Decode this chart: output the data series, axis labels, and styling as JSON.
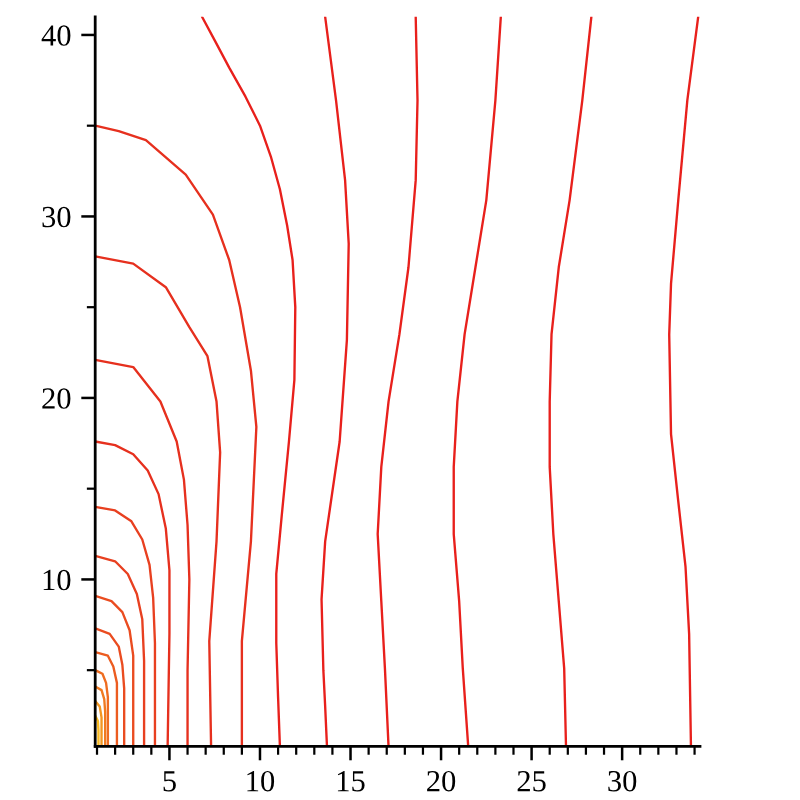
{
  "chart_data": {
    "type": "line",
    "xlim": [
      0.9,
      34.3
    ],
    "ylim": [
      0.8,
      41
    ],
    "xticks": [
      {
        "value": 1,
        "label": null
      },
      {
        "value": 2,
        "label": null
      },
      {
        "value": 3,
        "label": null
      },
      {
        "value": 4,
        "label": null
      },
      5,
      {
        "value": 6,
        "label": null
      },
      {
        "value": 7,
        "label": null
      },
      {
        "value": 8,
        "label": null
      },
      {
        "value": 9,
        "label": null
      },
      10,
      {
        "value": 11,
        "label": null
      },
      {
        "value": 12,
        "label": null
      },
      {
        "value": 13,
        "label": null
      },
      {
        "value": 14,
        "label": null
      },
      15,
      {
        "value": 16,
        "label": null
      },
      {
        "value": 17,
        "label": null
      },
      {
        "value": 18,
        "label": null
      },
      {
        "value": 19,
        "label": null
      },
      20,
      {
        "value": 21,
        "label": null
      },
      {
        "value": 22,
        "label": null
      },
      {
        "value": 23,
        "label": null
      },
      {
        "value": 24,
        "label": null
      },
      25,
      {
        "value": 26,
        "label": null
      },
      {
        "value": 27,
        "label": null
      },
      {
        "value": 28,
        "label": null
      },
      {
        "value": 29,
        "label": null
      },
      30,
      {
        "value": 31,
        "label": null
      },
      {
        "value": 32,
        "label": null
      },
      {
        "value": 33,
        "label": null
      },
      {
        "value": 34,
        "label": null
      }
    ],
    "yticks": [
      {
        "value": 5,
        "label": null
      },
      10,
      {
        "value": 15,
        "label": null
      },
      20,
      {
        "value": 25,
        "label": null
      },
      30,
      {
        "value": 35,
        "label": null
      },
      40
    ],
    "series": [
      {
        "color": "#e8201c",
        "x": [
          6.8,
          7.5,
          8.3,
          9.2,
          10.0,
          10.6,
          11.1,
          11.5,
          11.8,
          11.95,
          11.9,
          11.6,
          11.2,
          10.9,
          10.9,
          11.0,
          11.1
        ],
        "values": [
          41,
          39.7,
          38.2,
          36.6,
          35.0,
          33.3,
          31.5,
          29.5,
          27.6,
          25,
          21,
          17.6,
          13.5,
          10.3,
          6.5,
          3.5,
          0.8
        ]
      },
      {
        "color": "#e8201c",
        "x": [
          13.6,
          14.2,
          14.7,
          14.9,
          14.8,
          14.4,
          13.6,
          13.4,
          13.5,
          13.6,
          13.7
        ],
        "values": [
          41,
          36.4,
          32,
          28.5,
          23.2,
          17.6,
          12.1,
          8.9,
          5,
          3.0,
          0.8
        ]
      },
      {
        "color": "#e8201c",
        "x": [
          18.6,
          18.7,
          18.6,
          18.2,
          17.7,
          17.1,
          16.7,
          16.5,
          16.7,
          16.9,
          17.1
        ],
        "values": [
          41,
          36.4,
          32.0,
          27.2,
          23.5,
          19.8,
          16.2,
          12.5,
          8.8,
          5.1,
          0.8
        ]
      },
      {
        "color": "#e8201c",
        "x": [
          23.3,
          23.0,
          22.5,
          21.9,
          21.3,
          20.9,
          20.7,
          20.7,
          21.0,
          21.2,
          21.5
        ],
        "values": [
          41,
          36.4,
          30.9,
          27.2,
          23.5,
          19.8,
          16.2,
          12.5,
          8.8,
          5.1,
          0.8
        ]
      },
      {
        "color": "#e8201c",
        "x": [
          28.3,
          27.8,
          27.1,
          26.5,
          26.1,
          26.0,
          26.0,
          26.2,
          26.5,
          26.8,
          26.9
        ],
        "values": [
          41,
          36.4,
          30.9,
          27.2,
          23.5,
          19.8,
          16.2,
          12.5,
          8.8,
          5.1,
          0.8
        ]
      },
      {
        "color": "#e8201c",
        "x": [
          34.2,
          33.6,
          33.1,
          32.7,
          32.6,
          32.7,
          33.1,
          33.5,
          33.7,
          33.8
        ],
        "values": [
          41,
          36.4,
          30.9,
          26.3,
          23.5,
          18.0,
          14.3,
          10.7,
          7.0,
          0.8
        ]
      },
      {
        "color": "#e6301e",
        "x": [
          0.9,
          2.2,
          3.7,
          5.9,
          7.4,
          8.3,
          8.9,
          9.5,
          9.8,
          9.5,
          9.0,
          9.0
        ],
        "values": [
          35.0,
          34.7,
          34.2,
          32.3,
          30.1,
          27.6,
          25.0,
          21.5,
          18.4,
          12.1,
          6.6,
          0.8
        ]
      },
      {
        "color": "#e6301e",
        "x": [
          0.9,
          3.0,
          4.8,
          6.1,
          7.1,
          7.6,
          7.8,
          7.6,
          7.2,
          7.3
        ],
        "values": [
          27.8,
          27.4,
          26.1,
          23.9,
          22.3,
          19.8,
          17,
          12.1,
          6.6,
          0.8
        ]
      },
      {
        "color": "#e6301e",
        "x": [
          0.9,
          3.0,
          4.5,
          5.4,
          5.8,
          6.0,
          6.1,
          6.0,
          6.0
        ],
        "values": [
          22.1,
          21.7,
          19.8,
          17.6,
          15.5,
          13,
          10,
          5,
          0.8
        ]
      },
      {
        "color": "#e6301e",
        "x": [
          0.9,
          2.0,
          3.0,
          3.8,
          4.4,
          4.8,
          5.0,
          5.0,
          4.9
        ],
        "values": [
          17.6,
          17.4,
          16.9,
          16,
          14.7,
          12.8,
          10.5,
          7,
          0.8
        ]
      },
      {
        "color": "#e84020",
        "x": [
          0.9,
          2.0,
          2.9,
          3.5,
          3.9,
          4.1,
          4.2,
          4.2
        ],
        "values": [
          14.0,
          13.8,
          13.2,
          12.2,
          10.8,
          9,
          6.5,
          0.8
        ]
      },
      {
        "color": "#e84020",
        "x": [
          0.9,
          2.0,
          2.7,
          3.2,
          3.5,
          3.6,
          3.6
        ],
        "values": [
          11.3,
          11.0,
          10.3,
          9.2,
          7.8,
          5.5,
          0.8
        ]
      },
      {
        "color": "#ea4c20",
        "x": [
          0.9,
          1.8,
          2.4,
          2.8,
          3.0,
          3.0
        ],
        "values": [
          9.1,
          8.8,
          8.2,
          7.2,
          5.8,
          0.8
        ]
      },
      {
        "color": "#ea4c20",
        "x": [
          0.9,
          1.7,
          2.2,
          2.4,
          2.5,
          2.5
        ],
        "values": [
          7.3,
          7.0,
          6.3,
          5.3,
          4,
          0.8
        ]
      },
      {
        "color": "#ec5c20",
        "x": [
          0.9,
          1.6,
          1.9,
          2.1,
          2.1
        ],
        "values": [
          6.0,
          5.8,
          5.2,
          4.3,
          0.8
        ]
      },
      {
        "color": "#ee6c20",
        "x": [
          0.9,
          1.3,
          1.5,
          1.6,
          1.6
        ],
        "values": [
          5.0,
          4.8,
          4.3,
          3.5,
          0.8
        ]
      },
      {
        "color": "#f07a20",
        "x": [
          0.9,
          1.25,
          1.4,
          1.45,
          1.45
        ],
        "values": [
          4.1,
          3.9,
          3.4,
          2.7,
          0.8
        ]
      },
      {
        "color": "#f39620",
        "x": [
          0.9,
          1.15,
          1.25,
          1.25
        ],
        "values": [
          3.3,
          3.0,
          2.4,
          0.8
        ]
      },
      {
        "color": "#f7b820",
        "x": [
          0.9,
          1.05,
          1.08,
          1.08
        ],
        "values": [
          2.5,
          2.2,
          1.7,
          0.8
        ]
      }
    ]
  }
}
